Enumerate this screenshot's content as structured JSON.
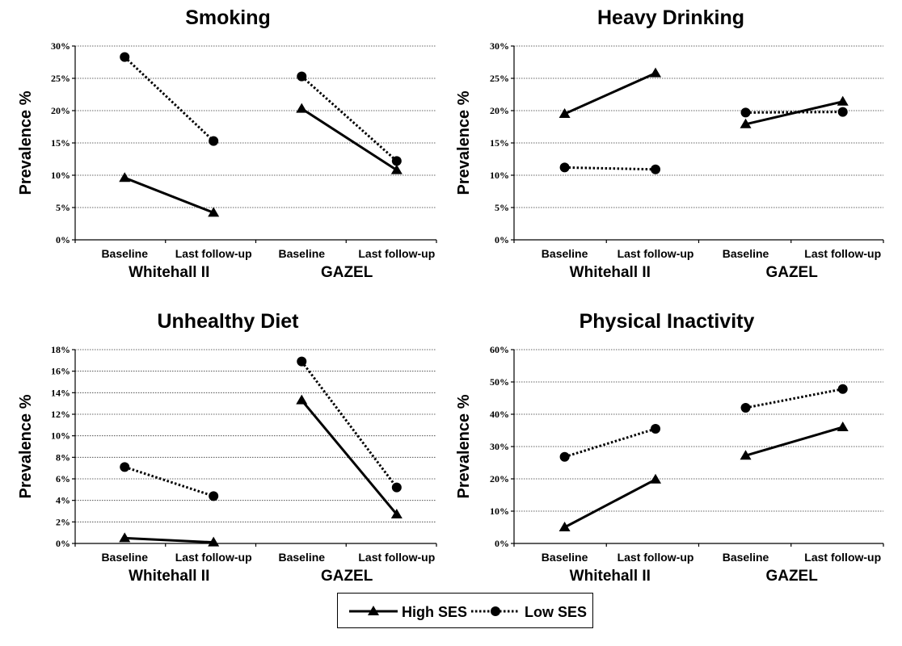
{
  "chart_data": [
    {
      "type": "line",
      "title": "Smoking",
      "ylabel": "Prevalence %",
      "ylim": [
        0,
        30
      ],
      "yticks": [
        "0%",
        "5%",
        "10%",
        "15%",
        "20%",
        "25%",
        "30%"
      ],
      "groups": [
        "Whitehall II",
        "GAZEL"
      ],
      "categories": [
        "Baseline",
        "Last follow-up",
        "Baseline",
        "Last follow-up"
      ],
      "series": [
        {
          "name": "High SES",
          "values": [
            [
              9.6,
              4.2
            ],
            [
              20.3,
              10.8
            ]
          ]
        },
        {
          "name": "Low SES",
          "values": [
            [
              28.3,
              15.3
            ],
            [
              25.3,
              12.2
            ]
          ]
        }
      ]
    },
    {
      "type": "line",
      "title": "Heavy Drinking",
      "ylabel": "Prevalence %",
      "ylim": [
        0,
        30
      ],
      "yticks": [
        "0%",
        "5%",
        "10%",
        "15%",
        "20%",
        "25%",
        "30%"
      ],
      "groups": [
        "Whitehall II",
        "GAZEL"
      ],
      "categories": [
        "Baseline",
        "Last follow-up",
        "Baseline",
        "Last follow-up"
      ],
      "series": [
        {
          "name": "High SES",
          "values": [
            [
              19.5,
              25.8
            ],
            [
              17.9,
              21.4
            ]
          ]
        },
        {
          "name": "Low SES",
          "values": [
            [
              11.2,
              10.9
            ],
            [
              19.7,
              19.8
            ]
          ]
        }
      ]
    },
    {
      "type": "line",
      "title": "Unhealthy Diet",
      "ylabel": "Prevalence %",
      "ylim": [
        0,
        18
      ],
      "yticks": [
        "0%",
        "2%",
        "4%",
        "6%",
        "8%",
        "10%",
        "12%",
        "14%",
        "16%",
        "18%"
      ],
      "groups": [
        "Whitehall II",
        "GAZEL"
      ],
      "categories": [
        "Baseline",
        "Last follow-up",
        "Baseline",
        "Last follow-up"
      ],
      "series": [
        {
          "name": "High SES",
          "values": [
            [
              0.5,
              0.1
            ],
            [
              13.3,
              2.7
            ]
          ]
        },
        {
          "name": "Low SES",
          "values": [
            [
              7.1,
              4.4
            ],
            [
              16.9,
              5.2
            ]
          ]
        }
      ]
    },
    {
      "type": "line",
      "title": "Physical Inactivity",
      "ylabel": "Prevalence %",
      "ylim": [
        0,
        60
      ],
      "yticks": [
        "0%",
        "10%",
        "20%",
        "30%",
        "40%",
        "50%",
        "60%"
      ],
      "groups": [
        "Whitehall II",
        "GAZEL"
      ],
      "categories": [
        "Baseline",
        "Last follow-up",
        "Baseline",
        "Last follow-up"
      ],
      "series": [
        {
          "name": "High SES",
          "values": [
            [
              5,
              19.8
            ],
            [
              27.2,
              36
            ]
          ]
        },
        {
          "name": "Low SES",
          "values": [
            [
              26.8,
              35.5
            ],
            [
              42,
              47.8
            ]
          ]
        }
      ]
    }
  ],
  "legend": {
    "entries": [
      {
        "label": "High SES",
        "style": "solid",
        "marker": "triangle"
      },
      {
        "label": "Low SES",
        "style": "dotted",
        "marker": "circle"
      }
    ],
    "placement": "bottom-center"
  },
  "colors": {
    "line": "#000000",
    "grid": "#333333",
    "background": "#ffffff"
  }
}
